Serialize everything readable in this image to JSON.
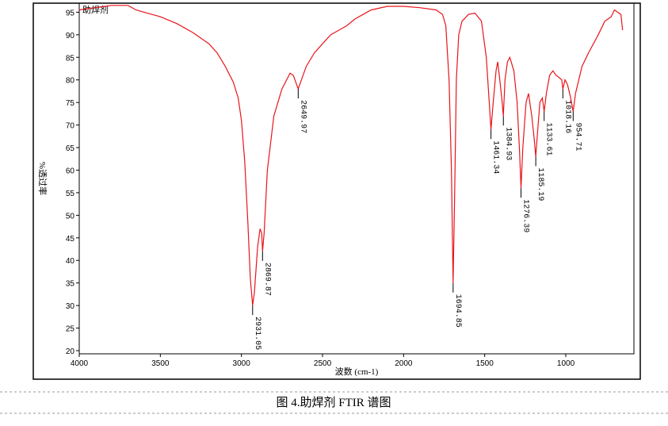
{
  "chart_data": {
    "type": "line",
    "series_label": "助焊剂",
    "xlabel": "波数 (cm-1)",
    "ylabel": "%透过率",
    "caption": "图 4.助焊剂 FTIR 谱图",
    "xlim": [
      4000,
      580
    ],
    "ylim": [
      19.3,
      97
    ],
    "xticks": [
      4000,
      3500,
      3000,
      2500,
      2000,
      1500,
      1000
    ],
    "yticks": [
      20,
      25,
      30,
      35,
      40,
      45,
      50,
      55,
      60,
      65,
      70,
      75,
      80,
      85,
      90,
      95
    ],
    "series": [
      {
        "color": "#e8141c",
        "x": [
          4000,
          3900,
          3800,
          3700,
          3650,
          3600,
          3500,
          3400,
          3300,
          3200,
          3150,
          3100,
          3050,
          3020,
          3000,
          2980,
          2960,
          2945,
          2931.05,
          2920,
          2900,
          2885,
          2875,
          2869.87,
          2860,
          2840,
          2800,
          2750,
          2700,
          2680,
          2660,
          2649.97,
          2630,
          2600,
          2550,
          2500,
          2450,
          2400,
          2350,
          2300,
          2250,
          2200,
          2100,
          2000,
          1900,
          1800,
          1760,
          1740,
          1720,
          1705,
          1694.85,
          1685,
          1675,
          1660,
          1640,
          1600,
          1560,
          1520,
          1490,
          1470,
          1461.34,
          1450,
          1430,
          1420,
          1410,
          1395,
          1384.93,
          1375,
          1360,
          1345,
          1320,
          1300,
          1285,
          1276.39,
          1265,
          1245,
          1230,
          1210,
          1195,
          1185.19,
          1175,
          1160,
          1145,
          1133.61,
          1120,
          1100,
          1080,
          1060,
          1040,
          1025,
          1018.16,
          1005,
          990,
          970,
          954.71,
          940,
          920,
          900,
          860,
          800,
          760,
          720,
          700,
          680,
          660,
          650
        ],
        "values": [
          95.5,
          96,
          96.5,
          96.5,
          95.5,
          95,
          94,
          92.5,
          90.5,
          88,
          86,
          83,
          79.5,
          76,
          71,
          62,
          48,
          36,
          30,
          33,
          43,
          47,
          46,
          42,
          46,
          60,
          72,
          78,
          81.5,
          81,
          79,
          78,
          80,
          83,
          86,
          88,
          90,
          91,
          92,
          93.5,
          94.5,
          95.5,
          96.3,
          96.3,
          96,
          95.5,
          94.5,
          92,
          80,
          60,
          35,
          55,
          80,
          90,
          93,
          94.5,
          94.8,
          93,
          85,
          74,
          69,
          74,
          82,
          84,
          81,
          76,
          72,
          80,
          84,
          85,
          82,
          75,
          64,
          56,
          65,
          75,
          77,
          72,
          67,
          63,
          68,
          75,
          76,
          73,
          77,
          81,
          82,
          81,
          80.5,
          80,
          78,
          80,
          79,
          76,
          73,
          77,
          80,
          83,
          86,
          90,
          93,
          94,
          95.5,
          95,
          94.5,
          91
        ]
      }
    ],
    "peaks": {
      "x": [
        2931.05,
        2869.87,
        2649.97,
        1694.85,
        1461.34,
        1384.93,
        1276.39,
        1185.19,
        1133.61,
        1018.16,
        954.71
      ],
      "y": [
        30,
        42,
        78,
        35,
        69,
        72,
        56,
        63,
        73,
        78,
        73
      ]
    }
  }
}
